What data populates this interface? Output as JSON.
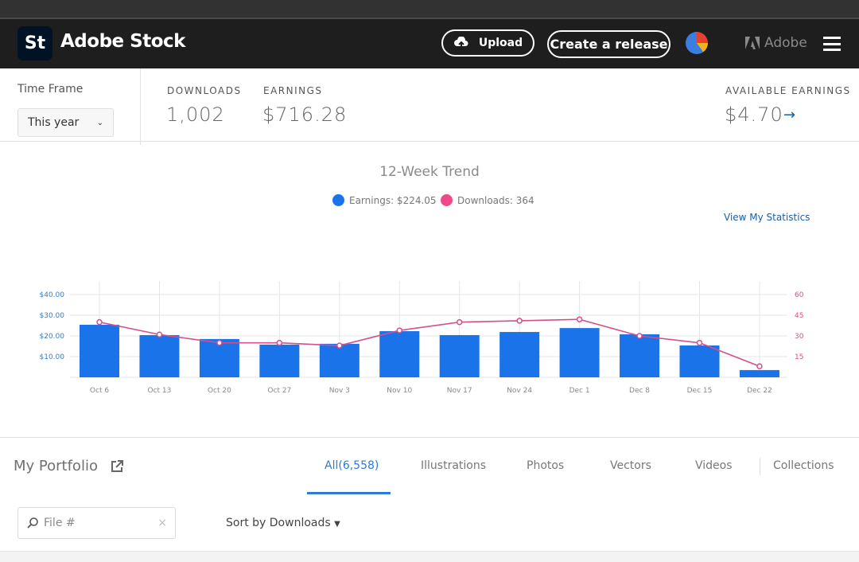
{
  "header": {
    "logo": "St",
    "brand": "Adobe Stock",
    "upload": "Upload",
    "create_release": "Create a release",
    "adobe": "Adobe"
  },
  "stats": {
    "time_frame_label": "Time Frame",
    "time_frame_value": "This year",
    "downloads_label": "DOWNLOADS",
    "downloads_value": "1,002",
    "earnings_label": "EARNINGS",
    "earnings_value": "$716.28",
    "available_label": "AVAILABLE EARNINGS",
    "available_value": "$4.70"
  },
  "trend": {
    "title": "12-Week Trend",
    "legend_earnings": "Earnings: $224.05",
    "legend_downloads": "Downloads: 364",
    "view_stats": "View My Statistics"
  },
  "colors": {
    "earnings": "#1a73e8",
    "downloads": "#d4508b"
  },
  "chart_data": {
    "type": "bar",
    "title": "12-Week Trend",
    "categories": [
      "Oct 6",
      "Oct 13",
      "Oct 20",
      "Oct 27",
      "Nov 3",
      "Nov 10",
      "Nov 17",
      "Nov 24",
      "Dec 1",
      "Dec 8",
      "Dec 15",
      "Dec 22"
    ],
    "series": [
      {
        "name": "Earnings",
        "type": "bar",
        "axis": "left",
        "values": [
          25.4,
          20.4,
          18.5,
          15.8,
          16.2,
          22.3,
          20.4,
          21.9,
          23.8,
          20.8,
          15.4,
          3.5
        ]
      },
      {
        "name": "Downloads",
        "type": "line",
        "axis": "right",
        "values": [
          40,
          31,
          25,
          25,
          23,
          34,
          40,
          41,
          42,
          30,
          25,
          8
        ]
      }
    ],
    "y_left": {
      "ticks": [
        "$10.00",
        "$20.00",
        "$30.00",
        "$40.00"
      ],
      "range": [
        0,
        40
      ]
    },
    "y_right": {
      "ticks": [
        "15",
        "30",
        "45",
        "60"
      ],
      "range": [
        0,
        60
      ]
    },
    "grid": true
  },
  "portfolio": {
    "title": "My Portfolio",
    "tabs": [
      "All(6,558)",
      "Illustrations",
      "Photos",
      "Vectors",
      "Videos",
      "Collections"
    ],
    "search_placeholder": "File #",
    "sort": "Sort by Downloads"
  }
}
